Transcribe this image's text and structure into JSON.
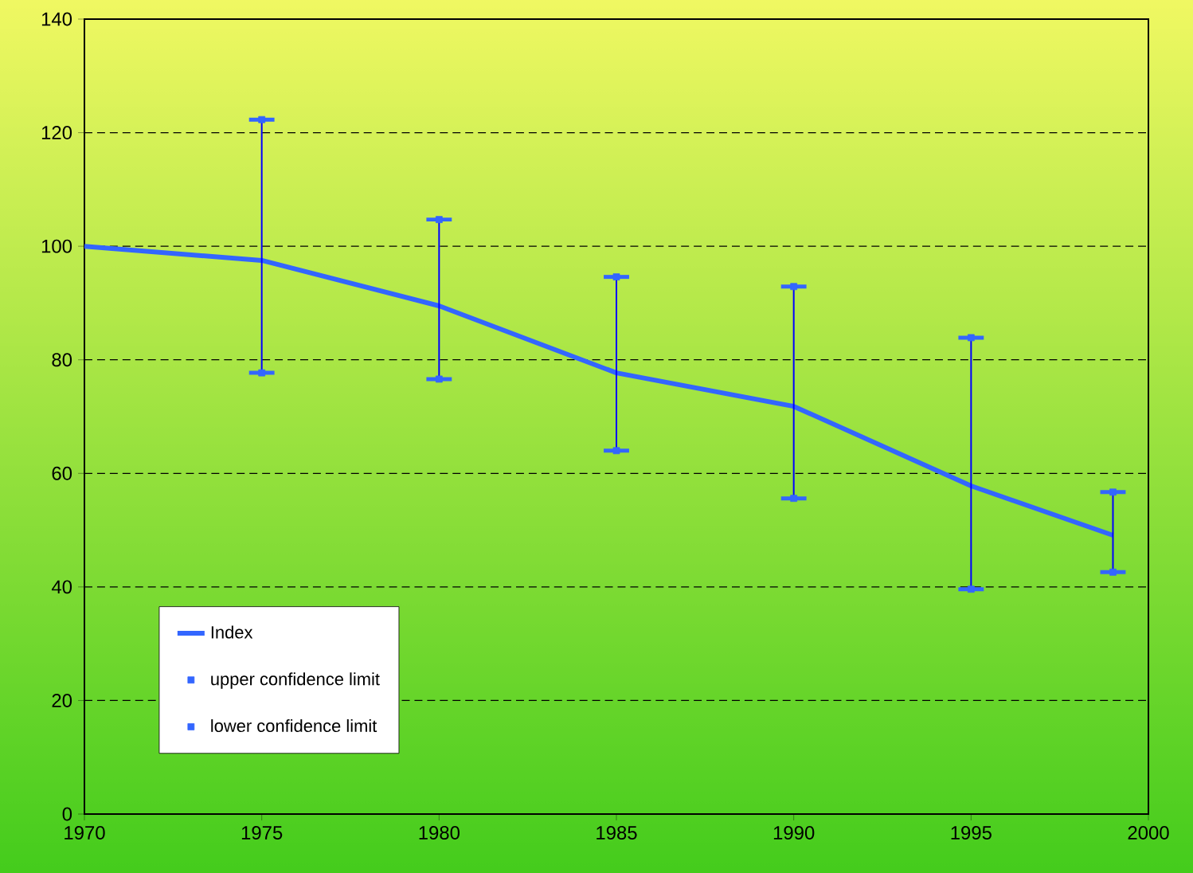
{
  "chart_data": {
    "type": "line",
    "x": [
      1970,
      1975,
      1980,
      1985,
      1990,
      1995,
      1999
    ],
    "series": [
      {
        "name": "Index",
        "color": "#3366ff",
        "values": [
          100,
          97.5,
          89.5,
          77.7,
          71.8,
          57.8,
          49.1
        ],
        "errors": [
          null,
          [
            77.7,
            122.3
          ],
          [
            76.6,
            104.7
          ],
          [
            64,
            94.6
          ],
          [
            55.6,
            92.9
          ],
          [
            39.6,
            83.9
          ],
          [
            42.6,
            56.7
          ]
        ]
      },
      {
        "name": "upper confidence limit",
        "type": "scatter",
        "marker": "square",
        "color": "#3366ff",
        "values": [
          null,
          122.3,
          104.7,
          94.6,
          92.9,
          83.9,
          56.7
        ]
      },
      {
        "name": "lower confidence limit",
        "type": "scatter",
        "marker": "square",
        "color": "#3366ff",
        "values": [
          null,
          77.7,
          76.6,
          64,
          55.6,
          39.6,
          42.6
        ]
      }
    ],
    "xlim": [
      1970,
      2000
    ],
    "xticks": [
      1970,
      1975,
      1980,
      1985,
      1990,
      1995,
      2000
    ],
    "ylim": [
      0,
      140
    ],
    "yticks": [
      0,
      20,
      40,
      60,
      80,
      100,
      120,
      140
    ],
    "grid": "y",
    "legend": "bottom left"
  }
}
